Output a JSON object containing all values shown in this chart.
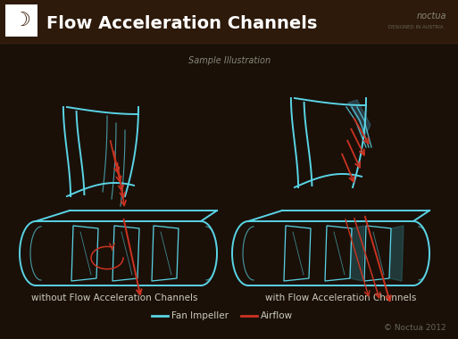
{
  "bg_color": "#1a1008",
  "header_color": "#2d1a0a",
  "title": "Flow Acceleration Channels",
  "title_color": "#ffffff",
  "title_fontsize": 14,
  "cyan": "#5ad4e6",
  "red": "#cc3322",
  "white": "#ffffff",
  "gray": "#888888",
  "sample_text": "Sample Illustration",
  "label_left": "without Flow Acceleration Channels",
  "label_right": "with Flow Acceleration Channels",
  "legend_fan": "Fan Impeller",
  "legend_air": "Airflow",
  "copyright": "© Noctua 2012"
}
